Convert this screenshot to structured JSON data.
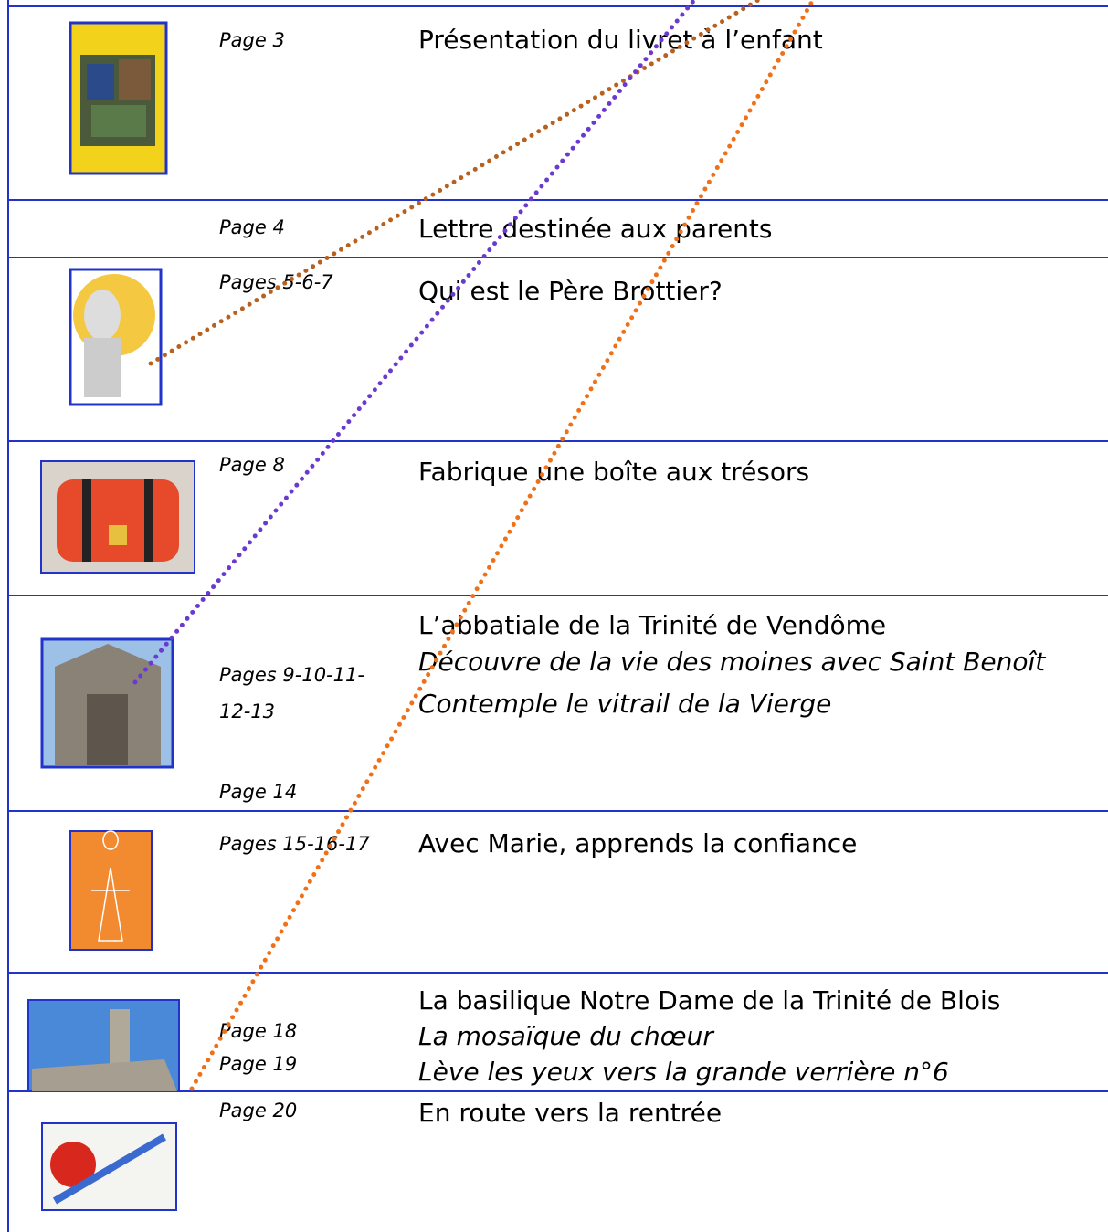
{
  "rows": [
    {
      "pages": [
        "Page 3"
      ],
      "lines": [
        "Présentation du livret à l’enfant"
      ]
    },
    {
      "pages": [
        "Page 4"
      ],
      "lines": [
        "Lettre destinée aux parents"
      ]
    },
    {
      "pages": [
        "Pages 5-6-7"
      ],
      "lines": [
        "Qui est le Père Brottier?"
      ]
    },
    {
      "pages": [
        "Page 8"
      ],
      "lines": [
        "Fabrique une boîte aux trésors"
      ]
    },
    {
      "pages": [
        "Pages 9-10-11-",
        "12-13",
        "Page 14"
      ],
      "lines": [
        "L’abbatiale de la Trinité de Vendôme",
        "Découvre de la vie des moines avec Saint Benoît",
        "Contemple le vitrail de la Vierge"
      ]
    },
    {
      "pages": [
        "Pages 15-16-17"
      ],
      "lines": [
        "Avec Marie, apprends la confiance"
      ]
    },
    {
      "pages": [
        "Page 18",
        "Page 19"
      ],
      "lines": [
        "La basilique Notre Dame de la Trinité de Blois",
        "La mosaïque du chœur",
        "Lève les yeux vers la grande verrière n°6"
      ]
    },
    {
      "pages": [
        "Page 20"
      ],
      "lines": [
        "En route vers la rentrée"
      ]
    }
  ]
}
